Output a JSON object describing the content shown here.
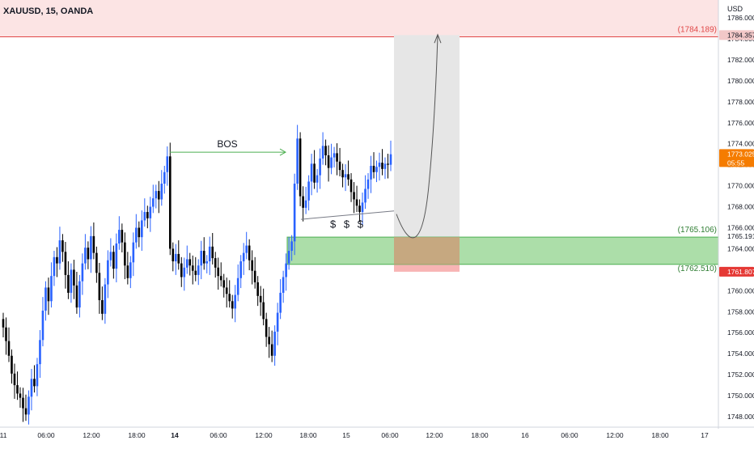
{
  "header": {
    "title": "XAUUSD, 15, OANDA",
    "currency": "USD"
  },
  "colors": {
    "up_candle": "#2962ff",
    "down_candle": "#000000",
    "resistance_zone": "#fce4e4",
    "resistance_line": "#e04848",
    "demand_zone": "#9ed89a",
    "demand_border": "#4caf50",
    "projection_box": "#e6e6e6",
    "stop_box": "#f8b4b4",
    "bos_line": "#4caf50",
    "current_price_bg": "#f57c00"
  },
  "chart_data": {
    "type": "candlestick",
    "symbol": "XAUUSD",
    "timeframe": "15",
    "source": "OANDA",
    "ylim": [
      1747,
      1787
    ],
    "y_ticks": [
      1748,
      1750,
      1752,
      1754,
      1756,
      1758,
      1760,
      1762,
      1764,
      1766,
      1768,
      1770,
      1772,
      1774,
      1776,
      1778,
      1780,
      1782,
      1784,
      1786
    ],
    "y_tick_labels": [
      "1748.000",
      "1750.000",
      "1752.000",
      "1754.000",
      "1756.000",
      "1758.000",
      "1760.000",
      "1762.000",
      "1764.000",
      "1766.000",
      "1768.000",
      "1770.000",
      "1772.000",
      "1774.000",
      "1776.000",
      "1778.000",
      "1780.000",
      "1782.000",
      "1784.000",
      "1786.000"
    ],
    "x_labels": [
      "11",
      "06:00",
      "12:00",
      "18:00",
      "14",
      "06:00",
      "12:00",
      "18:00",
      "15",
      "06:00",
      "12:00",
      "18:00",
      "16",
      "06:00",
      "12:00",
      "18:00",
      "17"
    ],
    "x_label_bold": [
      false,
      false,
      false,
      false,
      true,
      false,
      false,
      false,
      false,
      false,
      false,
      false,
      false,
      false,
      false,
      false,
      false
    ],
    "close_series": [
      1756.5,
      1755.2,
      1753.8,
      1752.1,
      1751.0,
      1750.2,
      1749.8,
      1748.8,
      1748.2,
      1749.9,
      1751.6,
      1750.9,
      1753.0,
      1755.3,
      1758.1,
      1760.3,
      1759.0,
      1761.4,
      1763.2,
      1762.6,
      1764.8,
      1763.7,
      1761.5,
      1759.8,
      1762.0,
      1760.5,
      1758.4,
      1760.9,
      1762.6,
      1764.1,
      1763.0,
      1765.2,
      1763.6,
      1761.7,
      1759.1,
      1757.8,
      1760.6,
      1762.9,
      1763.7,
      1762.1,
      1764.5,
      1765.8,
      1764.6,
      1762.4,
      1761.2,
      1762.7,
      1764.6,
      1766.0,
      1765.1,
      1766.7,
      1767.5,
      1766.9,
      1768.0,
      1768.8,
      1769.5,
      1768.7,
      1770.2,
      1771.3,
      1772.8,
      1764.0,
      1762.8,
      1763.5,
      1762.6,
      1761.3,
      1762.2,
      1763.0,
      1762.4,
      1761.9,
      1761.5,
      1762.4,
      1763.8,
      1762.6,
      1762.8,
      1764.2,
      1763.1,
      1762.2,
      1761.4,
      1761.0,
      1760.3,
      1759.7,
      1759.0,
      1758.3,
      1759.6,
      1761.2,
      1762.8,
      1763.6,
      1764.3,
      1762.9,
      1761.9,
      1760.8,
      1759.5,
      1758.9,
      1757.3,
      1755.6,
      1754.9,
      1753.8,
      1756.1,
      1757.9,
      1759.8,
      1761.3,
      1762.6,
      1763.8,
      1764.7,
      1770.2,
      1774.5,
      1769.0,
      1767.9,
      1768.6,
      1770.4,
      1772.1,
      1770.3,
      1771.0,
      1772.6,
      1773.8,
      1772.9,
      1771.7,
      1772.7,
      1773.1,
      1772.3,
      1771.5,
      1770.8,
      1771.1,
      1770.6,
      1769.4,
      1768.7,
      1768.1,
      1767.5,
      1768.4,
      1769.7,
      1770.6,
      1771.9,
      1771.3,
      1771.8,
      1772.2,
      1771.6,
      1772.1,
      1772.0,
      1773.0
    ],
    "levels": [
      {
        "label": "(1784.189)",
        "value": 1784.189
      },
      {
        "label": "(1765.106)",
        "value": 1765.106
      },
      {
        "label": "(1762.510)",
        "value": 1762.51
      }
    ],
    "price_tags": [
      {
        "label": "1784.357",
        "value": 1784.357
      },
      {
        "label": "1773.025",
        "value": 1773.025,
        "sub": "05:55"
      },
      {
        "label": "1765.191",
        "value": 1765.191
      },
      {
        "label": "1761.807",
        "value": 1761.807
      }
    ],
    "annotations": {
      "bos_label": "BOS",
      "liquidity_label": "$ $ $",
      "bos_level": 1773.2,
      "liquidity_line_from": 1766.8,
      "liquidity_line_to": 1767.6
    }
  }
}
